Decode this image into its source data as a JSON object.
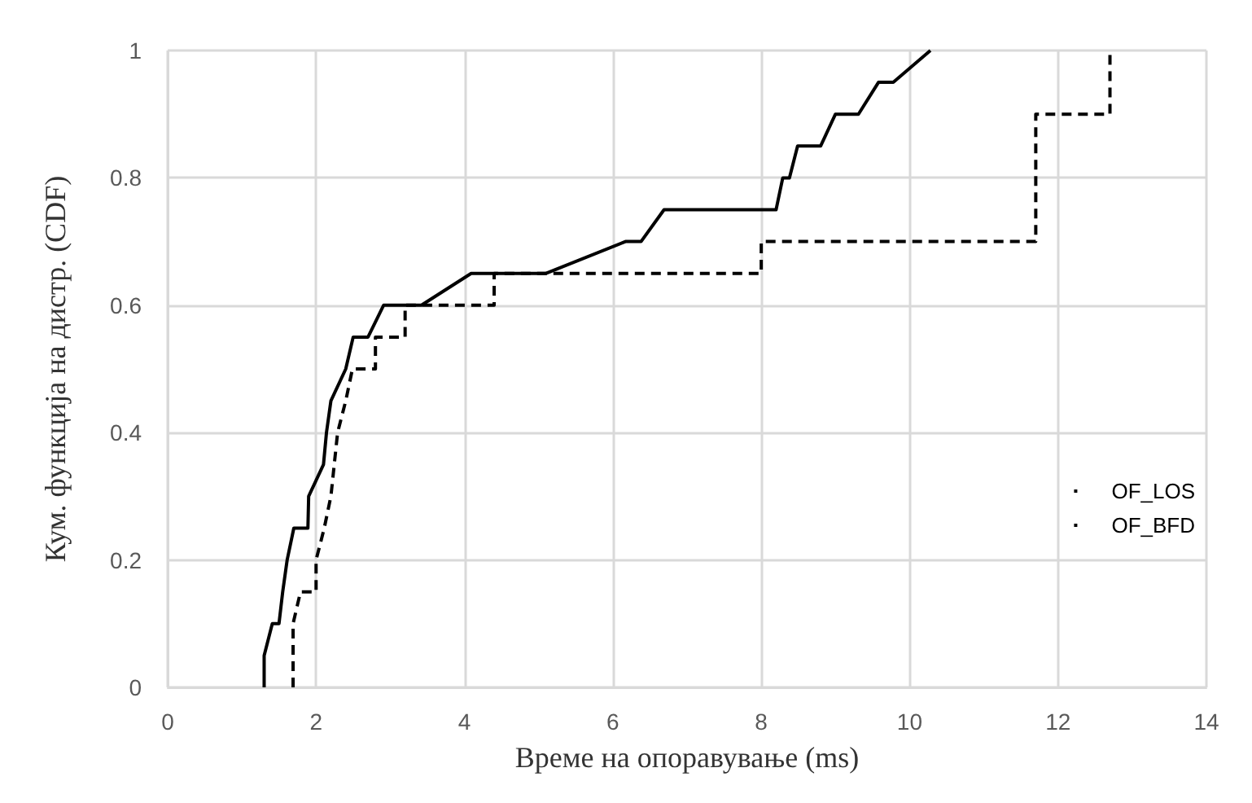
{
  "chart_data": {
    "type": "line",
    "xlabel": "Време на опоравување (ms)",
    "ylabel": "Кум. функција на дистр. (CDF)",
    "xlim": [
      0,
      14
    ],
    "xticks": [
      0,
      2,
      4,
      6,
      8,
      10,
      12,
      14
    ],
    "ylim": [
      0,
      1
    ],
    "yticks": [
      0,
      0.2,
      0.4,
      0.6,
      0.8,
      1
    ],
    "grid": true,
    "legend": "right",
    "marker": "none",
    "series": [
      {
        "name": "OF_LOS",
        "color": "#000000",
        "line_style": "dashed",
        "x": [
          1.69,
          1.69,
          1.79,
          2.0,
          2.0,
          2.11,
          2.2,
          2.29,
          2.4,
          2.49,
          2.8,
          2.8,
          3.2,
          3.2,
          4.4,
          4.4,
          8.0,
          8.0,
          11.7,
          11.7,
          12.7,
          12.7
        ],
        "values": [
          0,
          0.1,
          0.15,
          0.15,
          0.2,
          0.25,
          0.3,
          0.4,
          0.45,
          0.5,
          0.5,
          0.55,
          0.55,
          0.6,
          0.6,
          0.65,
          0.65,
          0.7,
          0.7,
          0.9,
          0.9,
          1.0
        ]
      },
      {
        "name": "OF_BFD",
        "color": "#000000",
        "line_style": "solid",
        "x": [
          1.3,
          1.3,
          1.41,
          1.5,
          1.55,
          1.61,
          1.7,
          1.89,
          1.9,
          2.1,
          2.14,
          2.2,
          2.4,
          2.5,
          2.7,
          2.91,
          3.42,
          4.09,
          5.1,
          6.17,
          6.38,
          6.69,
          8.2,
          8.29,
          8.38,
          8.49,
          8.8,
          9.0,
          9.31,
          9.58,
          9.78,
          10.28
        ],
        "values": [
          0,
          0.05,
          0.1,
          0.1,
          0.15,
          0.2,
          0.25,
          0.25,
          0.3,
          0.35,
          0.4,
          0.45,
          0.5,
          0.55,
          0.55,
          0.6,
          0.6,
          0.65,
          0.65,
          0.7,
          0.7,
          0.75,
          0.75,
          0.8,
          0.8,
          0.85,
          0.85,
          0.9,
          0.9,
          0.95,
          0.95,
          1.0
        ]
      }
    ]
  }
}
